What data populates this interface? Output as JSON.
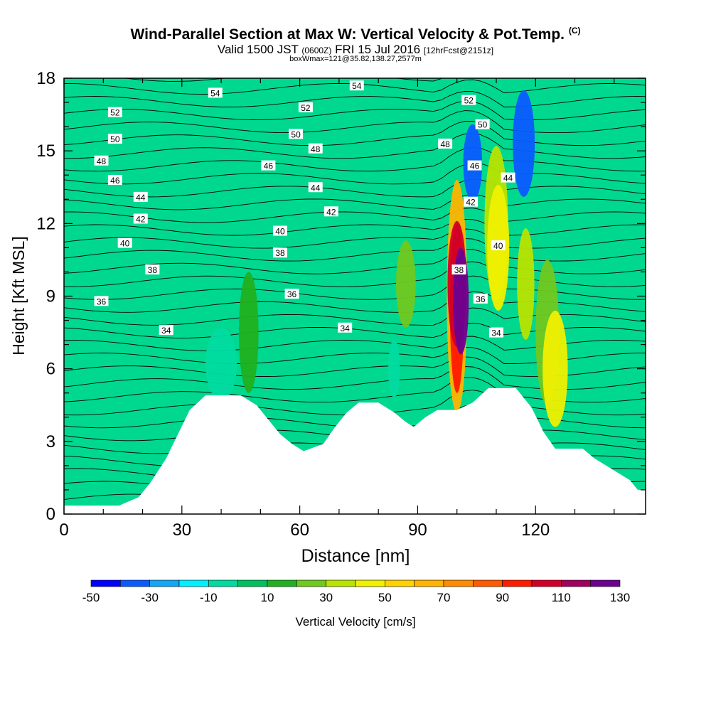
{
  "chart_data": {
    "type": "heatmap",
    "title": "Wind-Parallel Section at Max W: Vertical Velocity & Pot.Temp.",
    "title_mark": "(C)",
    "subtitle": {
      "valid": "Valid 1500 JST",
      "utc": "(0600Z)",
      "date": "FRI 15 Jul 2016",
      "fcst": "[12hrFcst@2151z]"
    },
    "box_info": "boxWmax=121@35.82,138.27,2577m",
    "xlabel": "Distance [nm]",
    "ylabel": "Height [Kft MSL]",
    "xlim": [
      0,
      148
    ],
    "ylim": [
      0,
      18
    ],
    "x_ticks": [
      "0",
      "30",
      "60",
      "90",
      "120"
    ],
    "x_tick_values": [
      0,
      30,
      60,
      90,
      120
    ],
    "y_ticks": [
      "0",
      "3",
      "6",
      "9",
      "12",
      "15",
      "18"
    ],
    "y_tick_values": [
      0,
      3,
      6,
      9,
      12,
      15,
      18
    ],
    "colorbar": {
      "label": "Vertical Velocity [cm/s]",
      "tick_labels": [
        "-50",
        "-30",
        "-10",
        "10",
        "30",
        "50",
        "70",
        "90",
        "110",
        "130"
      ],
      "levels": [
        -50,
        -40,
        -30,
        -20,
        -10,
        0,
        10,
        20,
        30,
        40,
        50,
        60,
        70,
        80,
        90,
        100,
        110,
        120,
        130
      ],
      "colors": [
        "#0000ff",
        "#0a5bff",
        "#13a6f5",
        "#00f0ff",
        "#00dba0",
        "#00c060",
        "#20b020",
        "#70c820",
        "#b8e400",
        "#f0f000",
        "#ffd200",
        "#ffb400",
        "#ff8c00",
        "#ff5a00",
        "#ff1a00",
        "#d20028",
        "#a00060",
        "#6c0090"
      ]
    },
    "background_level_color": "#00d890",
    "terrain": [
      [
        0,
        0.35
      ],
      [
        14,
        0.35
      ],
      [
        19,
        0.7
      ],
      [
        22,
        1.3
      ],
      [
        26,
        2.3
      ],
      [
        29,
        3.3
      ],
      [
        32,
        4.3
      ],
      [
        36,
        4.9
      ],
      [
        45,
        4.9
      ],
      [
        49,
        4.5
      ],
      [
        52,
        3.9
      ],
      [
        55,
        3.3
      ],
      [
        58,
        2.9
      ],
      [
        61,
        2.6
      ],
      [
        66,
        2.9
      ],
      [
        69,
        3.6
      ],
      [
        72,
        4.2
      ],
      [
        75,
        4.6
      ],
      [
        80,
        4.6
      ],
      [
        84,
        4.2
      ],
      [
        87,
        3.8
      ],
      [
        89,
        3.6
      ],
      [
        92,
        4.0
      ],
      [
        95,
        4.3
      ],
      [
        100,
        4.3
      ],
      [
        104,
        4.6
      ],
      [
        108,
        5.2
      ],
      [
        115,
        5.2
      ],
      [
        119,
        4.4
      ],
      [
        122,
        3.4
      ],
      [
        125,
        2.7
      ],
      [
        132,
        2.7
      ],
      [
        135,
        2.3
      ],
      [
        138,
        2.0
      ],
      [
        141,
        1.7
      ],
      [
        144,
        1.4
      ],
      [
        146,
        1.0
      ],
      [
        148,
        1.0
      ]
    ],
    "isentrope_labels": [
      {
        "text": "54",
        "x": 38.5,
        "y": 17.4
      },
      {
        "text": "54",
        "x": 74.5,
        "y": 17.7
      },
      {
        "text": "52",
        "x": 13,
        "y": 16.6
      },
      {
        "text": "52",
        "x": 61.5,
        "y": 16.8
      },
      {
        "text": "52",
        "x": 103,
        "y": 17.1
      },
      {
        "text": "50",
        "x": 13,
        "y": 15.5
      },
      {
        "text": "50",
        "x": 59,
        "y": 15.7
      },
      {
        "text": "50",
        "x": 106.5,
        "y": 16.1
      },
      {
        "text": "48",
        "x": 9.5,
        "y": 14.6
      },
      {
        "text": "48",
        "x": 64,
        "y": 15.1
      },
      {
        "text": "48",
        "x": 97,
        "y": 15.3
      },
      {
        "text": "46",
        "x": 13,
        "y": 13.8
      },
      {
        "text": "46",
        "x": 52,
        "y": 14.4
      },
      {
        "text": "46",
        "x": 104.5,
        "y": 14.4
      },
      {
        "text": "44",
        "x": 19.5,
        "y": 13.1
      },
      {
        "text": "44",
        "x": 64,
        "y": 13.5
      },
      {
        "text": "44",
        "x": 113,
        "y": 13.9
      },
      {
        "text": "42",
        "x": 19.5,
        "y": 12.2
      },
      {
        "text": "42",
        "x": 68,
        "y": 12.5
      },
      {
        "text": "42",
        "x": 103.5,
        "y": 12.9
      },
      {
        "text": "40",
        "x": 15.5,
        "y": 11.2
      },
      {
        "text": "40",
        "x": 55,
        "y": 11.7
      },
      {
        "text": "40",
        "x": 110.5,
        "y": 11.1
      },
      {
        "text": "38",
        "x": 22.5,
        "y": 10.1
      },
      {
        "text": "38",
        "x": 55,
        "y": 10.8
      },
      {
        "text": "38",
        "x": 100.5,
        "y": 10.1
      },
      {
        "text": "36",
        "x": 9.5,
        "y": 8.8
      },
      {
        "text": "36",
        "x": 58,
        "y": 9.1
      },
      {
        "text": "36",
        "x": 106,
        "y": 8.9
      },
      {
        "text": "34",
        "x": 26,
        "y": 7.6
      },
      {
        "text": "34",
        "x": 71.5,
        "y": 7.7
      },
      {
        "text": "34",
        "x": 110,
        "y": 7.5
      }
    ],
    "velocity_cells": [
      {
        "x": 100,
        "y": 9.5,
        "rx": 2.4,
        "ry": 2.6,
        "value": 105
      },
      {
        "x": 100,
        "y": 8.5,
        "rx": 1.8,
        "ry": 3.5,
        "value": 90
      },
      {
        "x": 100,
        "y": 9.0,
        "rx": 2.6,
        "ry": 4.8,
        "value": 60
      },
      {
        "x": 101,
        "y": 8.8,
        "rx": 2.0,
        "ry": 2.2,
        "value": 125
      },
      {
        "x": 110.5,
        "y": 11.0,
        "rx": 2.8,
        "ry": 2.6,
        "value": 45
      },
      {
        "x": 110,
        "y": 12.0,
        "rx": 3.0,
        "ry": 3.2,
        "value": 30
      },
      {
        "x": 125,
        "y": 6.0,
        "rx": 3.2,
        "ry": 2.4,
        "value": 48
      },
      {
        "x": 123,
        "y": 7.5,
        "rx": 3.0,
        "ry": 3.0,
        "value": 28
      },
      {
        "x": 117.5,
        "y": 9.5,
        "rx": 2.2,
        "ry": 2.3,
        "value": 30
      },
      {
        "x": 117,
        "y": 15.3,
        "rx": 2.8,
        "ry": 2.2,
        "value": -35
      },
      {
        "x": 104,
        "y": 14.5,
        "rx": 2.4,
        "ry": 1.6,
        "value": -35
      },
      {
        "x": 40,
        "y": 6.2,
        "rx": 4.0,
        "ry": 1.5,
        "value": -10
      },
      {
        "x": 84,
        "y": 6.0,
        "rx": 1.5,
        "ry": 1.2,
        "value": -10
      },
      {
        "x": 47,
        "y": 7.5,
        "rx": 2.5,
        "ry": 2.5,
        "value": 15
      },
      {
        "x": 87,
        "y": 9.5,
        "rx": 2.5,
        "ry": 1.8,
        "value": 20
      }
    ]
  }
}
